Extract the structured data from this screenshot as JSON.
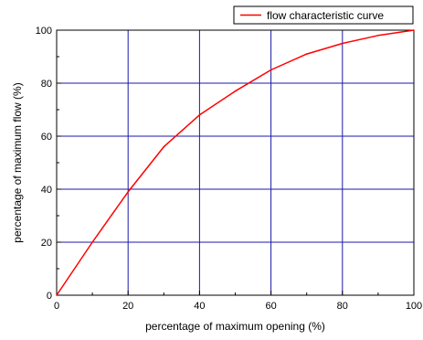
{
  "chart_data": {
    "type": "line",
    "title": "",
    "xlabel": "percentage of maximum opening (%)",
    "ylabel": "percentage of maximum flow (%)",
    "xlim": [
      0,
      100
    ],
    "ylim": [
      0,
      100
    ],
    "xticks": [
      0,
      20,
      40,
      60,
      80,
      100
    ],
    "yticks": [
      0,
      20,
      40,
      60,
      80,
      100
    ],
    "xtick_labels": [
      "0",
      "20",
      "40",
      "60",
      "80",
      "100"
    ],
    "ytick_labels": [
      "0",
      "20",
      "40",
      "60",
      "80",
      "100"
    ],
    "grid": true,
    "grid_color": "#1a1aa8",
    "legend_position": "top-right",
    "series": [
      {
        "name": "flow characteristic curve",
        "color": "#ff0000",
        "x": [
          0,
          10,
          20,
          30,
          40,
          50,
          60,
          70,
          80,
          90,
          100
        ],
        "y": [
          0,
          20,
          39,
          56,
          68,
          77,
          85,
          91,
          95,
          98,
          100
        ]
      }
    ]
  }
}
